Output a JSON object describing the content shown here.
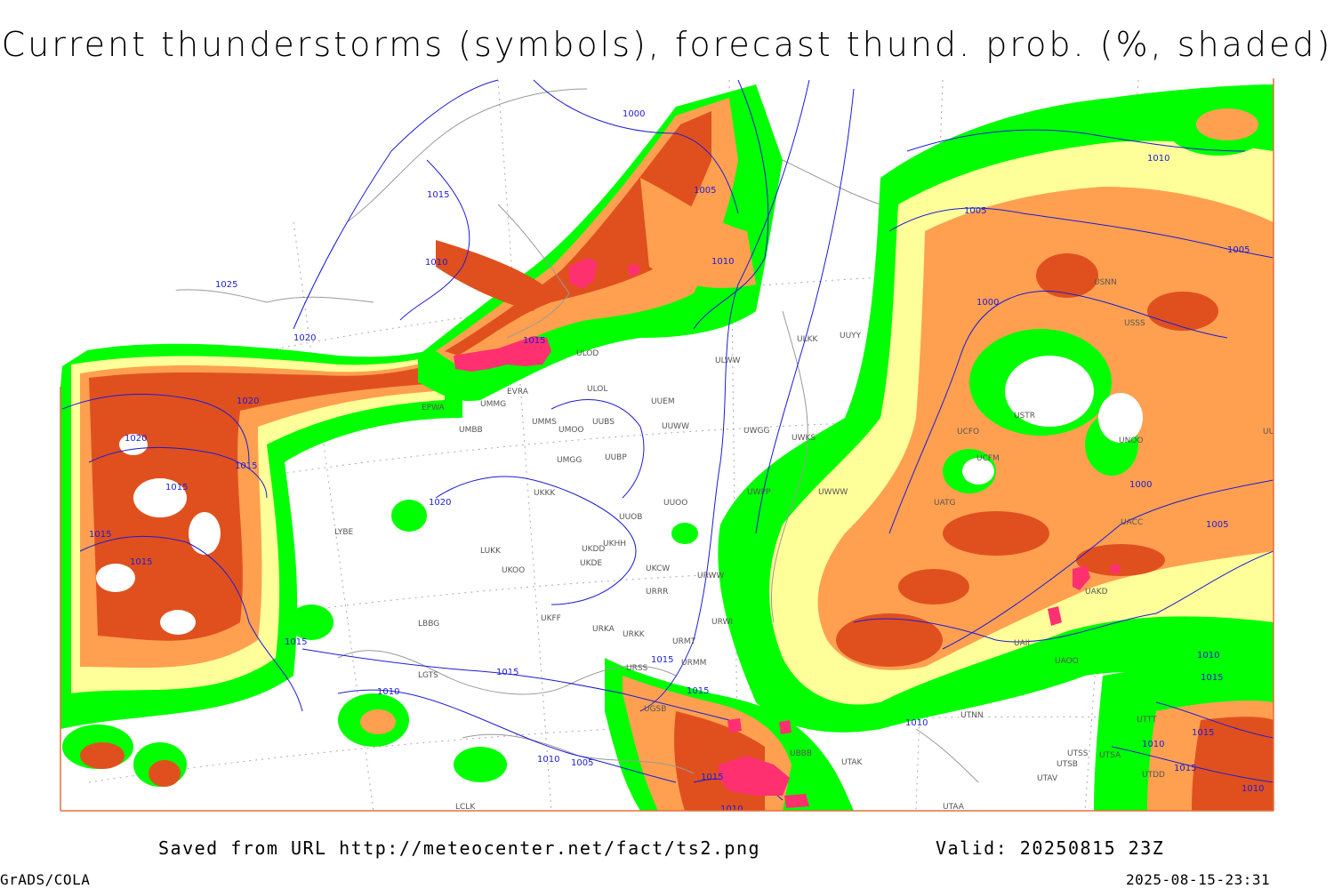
{
  "title": "Current thunderstorms (symbols), forecast thund. prob. (%, shaded)",
  "footer": {
    "source": "Saved from URL http://meteocenter.net/fact/ts2.png",
    "valid": "Valid: 20250815 23Z",
    "software": "GrADS/COLA",
    "timestamp": "2025-08-15-23:31"
  },
  "colors": {
    "low_prob": "#00ff00",
    "medium_prob": "#ffff99",
    "high_prob": "#ffa050",
    "very_high_prob": "#e0501e",
    "thunderstorm_symbol": "#ff3070",
    "isobar": "#1c1cd6",
    "coastline": "#999999",
    "gridline": "#aaaaaa"
  },
  "isobar_labels": [
    "1000",
    "1005",
    "1015",
    "1010",
    "1025",
    "1020",
    "1020",
    "1020",
    "1015",
    "1015",
    "1015",
    "1015",
    "1015",
    "1020",
    "1015",
    "1015",
    "1010",
    "1010",
    "1005",
    "1015",
    "1015",
    "1010",
    "1005",
    "1000",
    "1005",
    "1000",
    "1005",
    "1010",
    "1010",
    "1015",
    "1010",
    "1015",
    "1010",
    "1015",
    "1010",
    "1015",
    "1010"
  ],
  "station_labels": [
    "ULOD",
    "ULOL",
    "UUEM",
    "ULKK",
    "UUYY",
    "ULWW",
    "UMMS",
    "UMOO",
    "UUBS",
    "UUWW",
    "UMBB",
    "UMGG",
    "UUBP",
    "UKKK",
    "UUOB",
    "UUOO",
    "UKHH",
    "UKDD",
    "UKDE",
    "LUKK",
    "UKOO",
    "UKCW",
    "URRR",
    "URWW",
    "UKFF",
    "URWI",
    "URKA",
    "URKK",
    "URMT",
    "URMM",
    "URSS",
    "UGSB",
    "UBBB",
    "UTAK",
    "UTNN",
    "UTSB",
    "UTSA",
    "UTAV",
    "UTAA",
    "UTDD",
    "LBBG",
    "LYBE",
    "EPWA",
    "UMMG",
    "EVRA",
    "UWGG",
    "UWKS",
    "UWPP",
    "UWWW",
    "UATG",
    "UACC",
    "UAOO",
    "UAII",
    "UAKD",
    "USTR",
    "USNN",
    "UNOO",
    "USSS",
    "UUBB",
    "UCFM",
    "UCFO",
    "UTSS",
    "UTTT",
    "LCLK",
    "LGTS"
  ]
}
